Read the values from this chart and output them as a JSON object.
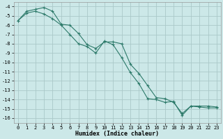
{
  "xlabel": "Humidex (Indice chaleur)",
  "ylabel": "",
  "bg_color": "#cce8e8",
  "grid_color": "#aac8c8",
  "line_color": "#2d7a6a",
  "xlim": [
    -0.5,
    23.5
  ],
  "ylim": [
    -16.5,
    -3.5
  ],
  "yticks": [
    -4,
    -5,
    -6,
    -7,
    -8,
    -9,
    -10,
    -11,
    -12,
    -13,
    -14,
    -15,
    -16
  ],
  "xticks": [
    0,
    1,
    2,
    3,
    4,
    5,
    6,
    7,
    8,
    9,
    10,
    11,
    12,
    13,
    14,
    15,
    16,
    17,
    18,
    19,
    20,
    21,
    22,
    23
  ],
  "line1_x": [
    0,
    1,
    2,
    3,
    4,
    5,
    6,
    7,
    8,
    9,
    10,
    11,
    12,
    13,
    14,
    15,
    16,
    17,
    18,
    19,
    20,
    21,
    22,
    23
  ],
  "line1_y": [
    -5.5,
    -4.5,
    -4.3,
    -4.1,
    -4.5,
    -5.9,
    -6.0,
    -6.9,
    -8.1,
    -8.5,
    -7.8,
    -7.8,
    -8.0,
    -10.2,
    -11.2,
    -12.5,
    -13.8,
    -13.9,
    -14.3,
    -15.5,
    -14.7,
    -14.7,
    -14.7,
    -14.8
  ],
  "line2_x": [
    0,
    1,
    2,
    3,
    4,
    5,
    6,
    7,
    8,
    9,
    10,
    11,
    12,
    13,
    14,
    15,
    16,
    17,
    18,
    19,
    20,
    21,
    22,
    23
  ],
  "line2_y": [
    -5.5,
    -4.7,
    -4.5,
    -4.8,
    -5.3,
    -6.0,
    -7.0,
    -8.0,
    -8.3,
    -9.0,
    -7.7,
    -8.1,
    -9.5,
    -11.1,
    -12.3,
    -13.9,
    -14.0,
    -14.3,
    -14.2,
    -15.7,
    -14.7,
    -14.8,
    -14.9,
    -14.9
  ],
  "tick_fontsize": 5.0,
  "xlabel_fontsize": 6.0,
  "marker_size": 3.0,
  "line_width": 0.8
}
